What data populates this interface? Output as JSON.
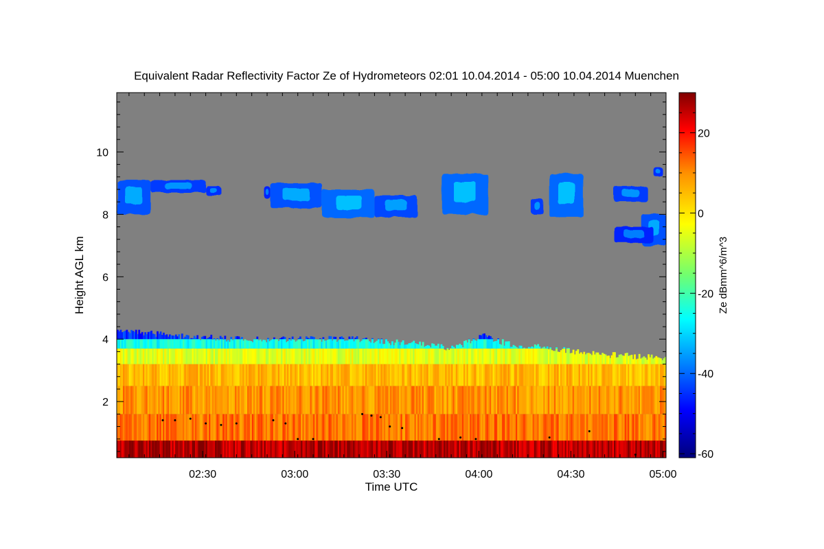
{
  "chart_data": {
    "type": "heatmap",
    "title": "Equivalent Radar Reflectivity Factor Ze of Hydrometeors   02:01 10.04.2014 - 05:00 10.04.2014 Muenchen",
    "xlabel": "Time UTC",
    "ylabel": "Height AGL km",
    "x_ticks": [
      {
        "value": 149,
        "label": "02:30"
      },
      {
        "value": 179,
        "label": "03:00"
      },
      {
        "value": 209,
        "label": "03:30"
      },
      {
        "value": 239,
        "label": "04:00"
      },
      {
        "value": 269,
        "label": "04:30"
      },
      {
        "value": 299,
        "label": "05:00"
      }
    ],
    "x_range_minutes": [
      121,
      300
    ],
    "y_ticks": [
      {
        "value": 2,
        "label": "2"
      },
      {
        "value": 4,
        "label": "4"
      },
      {
        "value": 6,
        "label": "6"
      },
      {
        "value": 8,
        "label": "8"
      },
      {
        "value": 10,
        "label": "10"
      }
    ],
    "y_range_km": [
      0.2,
      11.9
    ],
    "colorbar": {
      "label": "Ze dBmm^6/m^3",
      "range": [
        -61,
        30
      ],
      "ticks": [
        {
          "value": 20,
          "label": "20"
        },
        {
          "value": 0,
          "label": "0"
        },
        {
          "value": -20,
          "label": "-20"
        },
        {
          "value": -40,
          "label": "-40"
        },
        {
          "value": -60,
          "label": "-60"
        }
      ],
      "colors": [
        "#00007a",
        "#0000ff",
        "#0090ff",
        "#00ffff",
        "#70ff70",
        "#ffff00",
        "#ff9000",
        "#ff0000",
        "#800000"
      ]
    },
    "no_echo_color": "#808080",
    "low_cloud_layer": {
      "top_km": [
        {
          "t": 121,
          "h": 4.3
        },
        {
          "t": 130,
          "h": 4.2
        },
        {
          "t": 140,
          "h": 4.1
        },
        {
          "t": 150,
          "h": 4.05
        },
        {
          "t": 160,
          "h": 4.0
        },
        {
          "t": 170,
          "h": 4.0
        },
        {
          "t": 180,
          "h": 4.0
        },
        {
          "t": 190,
          "h": 4.0
        },
        {
          "t": 200,
          "h": 4.0
        },
        {
          "t": 210,
          "h": 3.9
        },
        {
          "t": 220,
          "h": 3.85
        },
        {
          "t": 230,
          "h": 3.7
        },
        {
          "t": 240,
          "h": 4.1
        },
        {
          "t": 250,
          "h": 3.8
        },
        {
          "t": 260,
          "h": 3.75
        },
        {
          "t": 270,
          "h": 3.6
        },
        {
          "t": 280,
          "h": 3.5
        },
        {
          "t": 290,
          "h": 3.45
        },
        {
          "t": 300,
          "h": 3.4
        }
      ],
      "band_dbz": [
        {
          "from_km": 0.2,
          "to_km": 0.75,
          "dbz": 26
        },
        {
          "from_km": 0.75,
          "to_km": 1.6,
          "dbz": 12
        },
        {
          "from_km": 1.6,
          "to_km": 2.5,
          "dbz": 9
        },
        {
          "from_km": 2.5,
          "to_km": 3.2,
          "dbz": 5
        },
        {
          "from_km": 3.2,
          "to_km": 3.7,
          "dbz": -5
        },
        {
          "from_km": 3.7,
          "to_km": 4.0,
          "dbz": -25
        },
        {
          "from_km": 4.0,
          "to_km": 4.3,
          "dbz": -45
        }
      ]
    },
    "high_cloud_patches": [
      {
        "t_start": 121,
        "t_end": 132,
        "h_bottom": 8.0,
        "h_top": 9.1,
        "dbz": -42
      },
      {
        "t_start": 132,
        "t_end": 150,
        "h_bottom": 8.7,
        "h_top": 9.1,
        "dbz": -44
      },
      {
        "t_start": 150,
        "t_end": 155,
        "h_bottom": 8.6,
        "h_top": 8.9,
        "dbz": -45
      },
      {
        "t_start": 169,
        "t_end": 171,
        "h_bottom": 8.5,
        "h_top": 8.9,
        "dbz": -46
      },
      {
        "t_start": 171,
        "t_end": 188,
        "h_bottom": 8.2,
        "h_top": 9.0,
        "dbz": -42
      },
      {
        "t_start": 188,
        "t_end": 205,
        "h_bottom": 7.9,
        "h_top": 8.8,
        "dbz": -40
      },
      {
        "t_start": 205,
        "t_end": 219,
        "h_bottom": 7.9,
        "h_top": 8.6,
        "dbz": -43
      },
      {
        "t_start": 227,
        "t_end": 242,
        "h_bottom": 8.0,
        "h_top": 9.3,
        "dbz": -40
      },
      {
        "t_start": 256,
        "t_end": 260,
        "h_bottom": 8.0,
        "h_top": 8.5,
        "dbz": -44
      },
      {
        "t_start": 262,
        "t_end": 273,
        "h_bottom": 7.9,
        "h_top": 9.3,
        "dbz": -40
      },
      {
        "t_start": 283,
        "t_end": 294,
        "h_bottom": 8.4,
        "h_top": 8.9,
        "dbz": -44
      },
      {
        "t_start": 292,
        "t_end": 300,
        "h_bottom": 7.0,
        "h_top": 8.0,
        "dbz": -42
      },
      {
        "t_start": 283,
        "t_end": 296,
        "h_bottom": 7.1,
        "h_top": 7.6,
        "dbz": -46
      },
      {
        "t_start": 296,
        "t_end": 299,
        "h_bottom": 9.2,
        "h_top": 9.5,
        "dbz": -45
      }
    ],
    "cloud_base_points_km": [
      {
        "t": 136,
        "h": 1.4
      },
      {
        "t": 140,
        "h": 1.4
      },
      {
        "t": 145,
        "h": 1.45
      },
      {
        "t": 150,
        "h": 1.3
      },
      {
        "t": 155,
        "h": 1.25
      },
      {
        "t": 160,
        "h": 1.3
      },
      {
        "t": 172,
        "h": 1.4
      },
      {
        "t": 176,
        "h": 1.3
      },
      {
        "t": 180,
        "h": 0.8
      },
      {
        "t": 185,
        "h": 0.8
      },
      {
        "t": 201,
        "h": 1.6
      },
      {
        "t": 204,
        "h": 1.55
      },
      {
        "t": 207,
        "h": 1.5
      },
      {
        "t": 210,
        "h": 1.2
      },
      {
        "t": 214,
        "h": 1.15
      },
      {
        "t": 226,
        "h": 0.8
      },
      {
        "t": 233,
        "h": 0.85
      },
      {
        "t": 238,
        "h": 0.8
      },
      {
        "t": 262,
        "h": 0.85
      },
      {
        "t": 275,
        "h": 1.05
      },
      {
        "t": 290,
        "h": 0.3
      }
    ]
  }
}
